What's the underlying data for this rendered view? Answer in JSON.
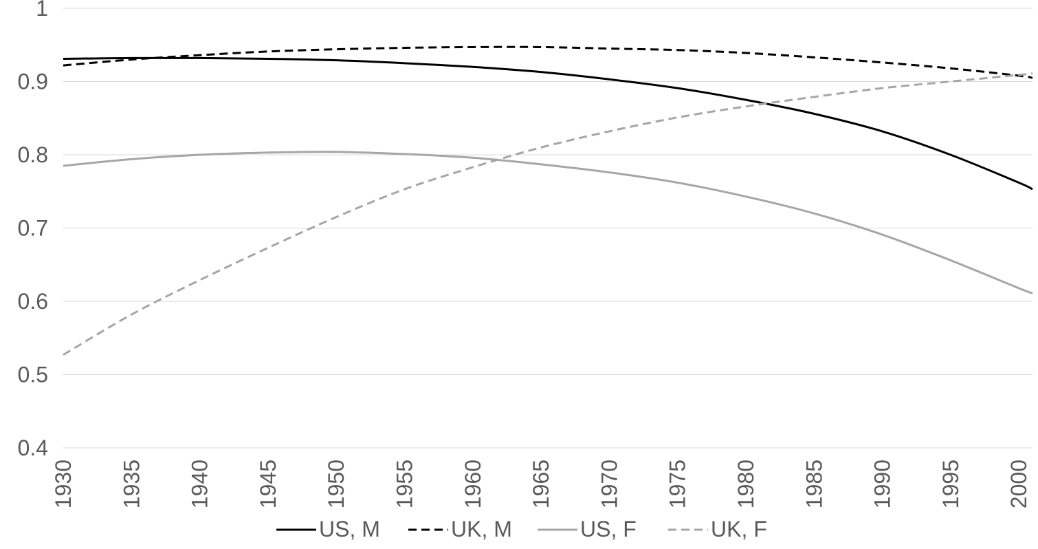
{
  "chart_data": {
    "type": "line",
    "title": "",
    "xlabel": "",
    "ylabel": "",
    "xlim": [
      1930,
      2001
    ],
    "ylim": [
      0.4,
      1.0
    ],
    "y_ticks": [
      "0.4",
      "0.5",
      "0.6",
      "0.7",
      "0.8",
      "0.9",
      "1"
    ],
    "x_ticks": [
      "1930",
      "1935",
      "1940",
      "1945",
      "1950",
      "1955",
      "1960",
      "1965",
      "1970",
      "1975",
      "1980",
      "1985",
      "1990",
      "1995",
      "2000"
    ],
    "grid": "horizontal",
    "legend_position": "bottom",
    "x": [
      1930,
      1935,
      1940,
      1945,
      1950,
      1955,
      1960,
      1965,
      1970,
      1975,
      1980,
      1985,
      1990,
      1995,
      2000,
      2001
    ],
    "series": [
      {
        "name": "US, M",
        "color": "#000000",
        "dash": "solid",
        "values": [
          0.931,
          0.932,
          0.932,
          0.931,
          0.929,
          0.925,
          0.92,
          0.913,
          0.903,
          0.891,
          0.875,
          0.856,
          0.832,
          0.8,
          0.762,
          0.753
        ]
      },
      {
        "name": "UK, M",
        "color": "#000000",
        "dash": "dashed",
        "values": [
          0.922,
          0.93,
          0.936,
          0.941,
          0.944,
          0.946,
          0.947,
          0.947,
          0.945,
          0.943,
          0.939,
          0.933,
          0.926,
          0.918,
          0.908,
          0.905
        ]
      },
      {
        "name": "US, F",
        "color": "#a6a6a6",
        "dash": "solid",
        "values": [
          0.785,
          0.794,
          0.8,
          0.803,
          0.804,
          0.801,
          0.796,
          0.787,
          0.776,
          0.762,
          0.743,
          0.72,
          0.691,
          0.656,
          0.618,
          0.611
        ]
      },
      {
        "name": "UK, F",
        "color": "#a6a6a6",
        "dash": "dashed",
        "values": [
          0.527,
          0.582,
          0.629,
          0.673,
          0.715,
          0.753,
          0.783,
          0.81,
          0.832,
          0.851,
          0.866,
          0.879,
          0.891,
          0.9,
          0.909,
          0.911
        ]
      }
    ]
  }
}
